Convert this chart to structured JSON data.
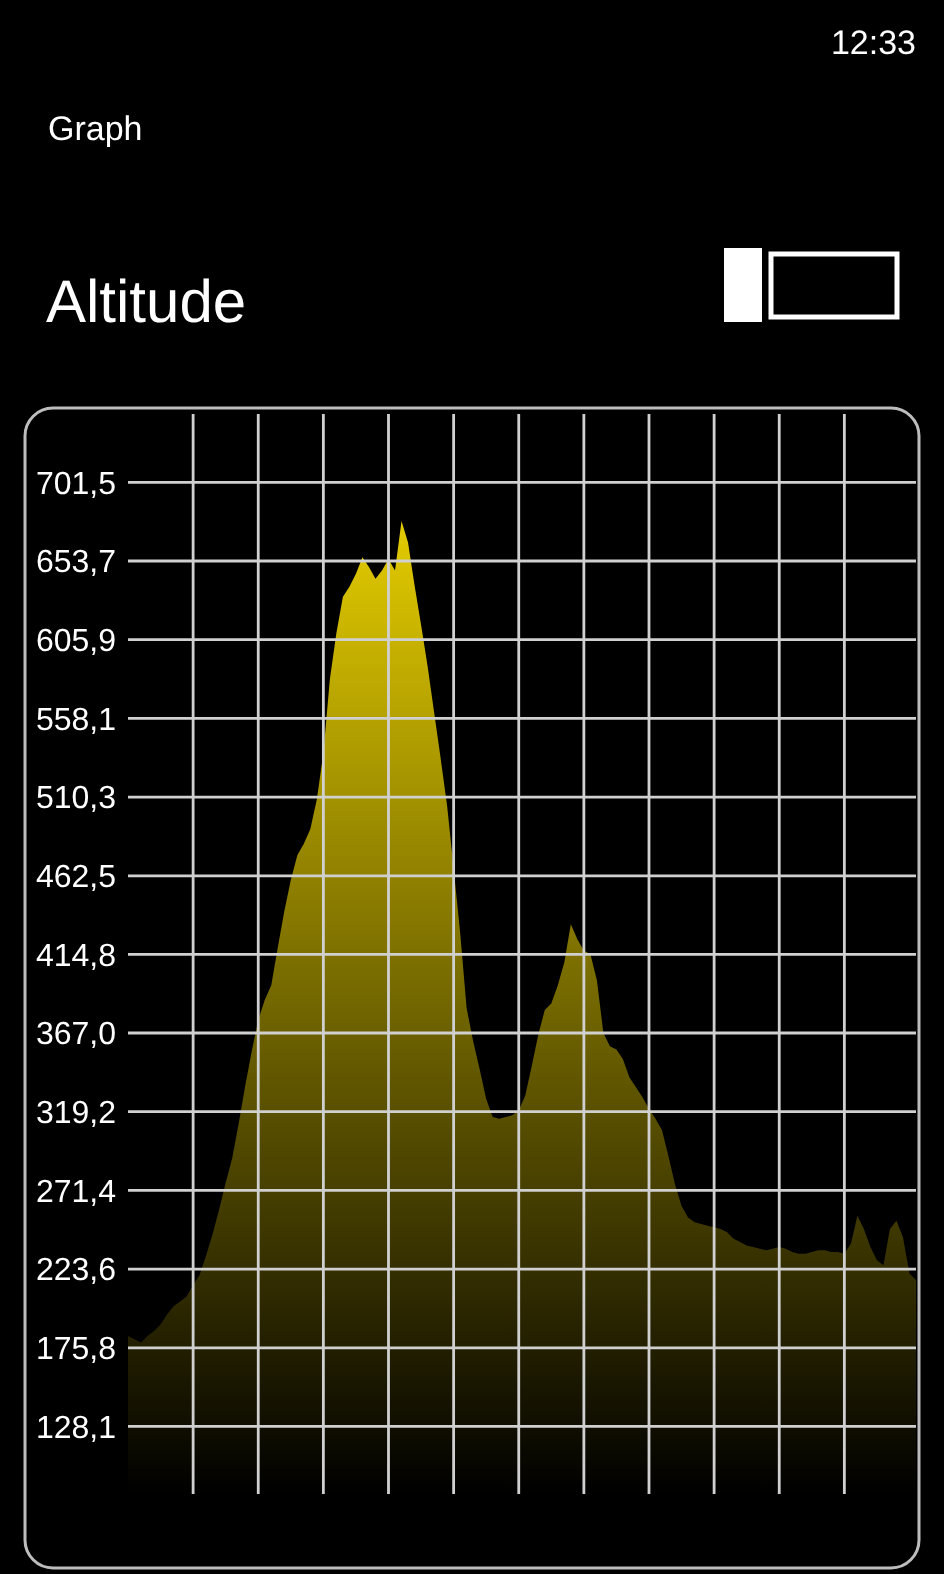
{
  "chart_data": {
    "type": "area",
    "title": "Altitude",
    "annotations": [
      "12:33",
      "Graph"
    ],
    "categories": [
      null,
      null,
      null,
      null,
      null,
      null,
      null,
      null,
      null,
      null,
      null,
      null,
      null,
      null,
      null,
      null,
      null,
      null,
      null,
      null,
      null,
      null,
      null,
      null,
      null,
      null,
      null,
      null,
      null,
      null,
      null,
      null,
      null,
      null,
      null,
      null,
      null,
      null,
      null,
      null,
      null,
      null,
      null,
      null,
      null,
      null,
      null,
      null,
      null,
      null,
      null,
      null,
      null,
      null,
      null,
      null,
      null,
      null,
      null,
      null,
      null,
      null,
      null,
      null,
      null,
      null,
      null,
      null,
      null,
      null,
      null,
      null,
      null,
      null,
      null,
      null,
      null,
      null,
      null,
      null,
      null,
      null,
      null,
      null,
      null,
      null,
      null,
      null,
      null,
      null,
      null,
      null,
      null,
      null,
      null,
      null,
      null,
      null,
      null,
      null,
      null,
      null,
      null,
      null,
      null,
      null,
      null,
      null,
      null,
      null,
      null,
      null,
      null,
      null,
      null,
      null,
      null,
      null,
      null,
      null,
      null,
      null
    ],
    "ylim": [
      87,
      743
    ],
    "yticks": [
      {
        "value": 128.1,
        "label": "128,1"
      },
      {
        "value": 175.8,
        "label": "175,8"
      },
      {
        "value": 223.6,
        "label": "223,6"
      },
      {
        "value": 271.4,
        "label": "271,4"
      },
      {
        "value": 319.2,
        "label": "319,2"
      },
      {
        "value": 367.0,
        "label": "367,0"
      },
      {
        "value": 414.8,
        "label": "414,8"
      },
      {
        "value": 462.5,
        "label": "462,5"
      },
      {
        "value": 510.3,
        "label": "510,3"
      },
      {
        "value": 558.1,
        "label": "558,1"
      },
      {
        "value": 605.9,
        "label": "605,9"
      },
      {
        "value": 653.7,
        "label": "653,7"
      },
      {
        "value": 701.5,
        "label": "701,5"
      }
    ],
    "grid": true,
    "tick_labels": "y",
    "series": [
      {
        "color": "#e3cb00",
        "values": [
          183,
          181,
          179,
          183,
          186,
          190,
          196,
          201,
          204,
          207,
          214,
          220,
          232,
          245,
          260,
          276,
          291,
          312,
          335,
          356,
          375,
          387,
          396,
          419,
          441,
          460,
          475,
          482,
          491,
          509,
          537,
          582,
          610,
          632,
          638,
          646,
          656,
          650,
          643,
          648,
          655,
          648,
          678,
          665,
          639,
          615,
          590,
          562,
          534,
          505,
          467,
          428,
          382,
          362,
          345,
          327,
          316,
          315,
          316,
          317,
          320,
          329,
          347,
          366,
          381,
          385,
          396,
          410,
          433,
          424,
          417,
          415,
          399,
          367,
          359,
          357,
          351,
          340,
          334,
          328,
          321,
          315,
          308,
          292,
          275,
          262,
          255,
          252,
          251,
          250,
          249,
          248,
          246,
          242,
          240,
          238,
          237,
          236,
          235,
          236,
          237,
          236,
          234,
          233,
          233,
          234,
          235,
          235,
          234,
          234,
          233,
          239,
          256,
          248,
          237,
          229,
          226,
          248,
          253,
          243,
          221,
          217
        ]
      }
    ]
  }
}
